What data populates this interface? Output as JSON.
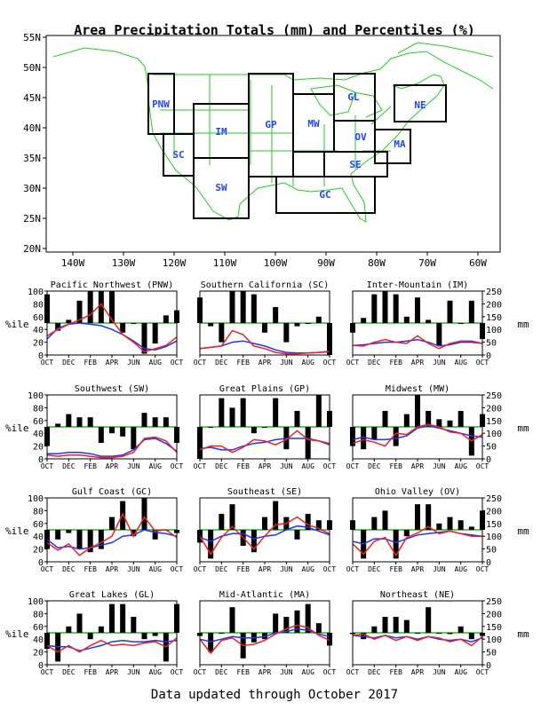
{
  "title": "Area Precipitation Totals (mm) and Percentiles (%)",
  "footer": "Data updated through October 2017",
  "map": {
    "lat_labels": [
      "55N",
      "50N",
      "45N",
      "40N",
      "35N",
      "30N",
      "25N",
      "20N"
    ],
    "lon_labels": [
      "140W",
      "130W",
      "120W",
      "110W",
      "100W",
      "90W",
      "80W",
      "70W",
      "60W"
    ],
    "regions": [
      "PNW",
      "SC",
      "IM",
      "SW",
      "GP",
      "MW",
      "GL",
      "OV",
      "SE",
      "GC",
      "MA",
      "NE"
    ]
  },
  "axes": {
    "pct_label": "%ile",
    "mm_label": "mm",
    "pct_ticks": [
      "0",
      "20",
      "40",
      "60",
      "80",
      "100"
    ],
    "mm_ticks": [
      "0",
      "50",
      "100",
      "150",
      "200",
      "250"
    ],
    "month_ticks": [
      "OCT",
      "DEC",
      "FEB",
      "APR",
      "JUN",
      "AUG",
      "OCT"
    ]
  },
  "colors": {
    "bars": "#000000",
    "median_line": "#22bb22",
    "red_line": "#ee2222",
    "blue_line": "#2233ee",
    "map_lines": "#22cc22",
    "region_labels": "#2244ff"
  },
  "chart_data": [
    {
      "type": "bar",
      "title": "Pacific Northwest (PNW)",
      "bars_pct": [
        95,
        38,
        55,
        85,
        100,
        100,
        100,
        35,
        50,
        2,
        18,
        62,
        70
      ],
      "red": [
        30,
        40,
        48,
        55,
        63,
        80,
        55,
        32,
        20,
        5,
        10,
        15,
        28
      ],
      "blue": [
        25,
        42,
        48,
        50,
        48,
        46,
        40,
        32,
        22,
        10,
        8,
        13,
        22
      ]
    },
    {
      "type": "bar",
      "title": "Southern California (SC)",
      "bars_pct": [
        90,
        45,
        20,
        100,
        100,
        95,
        35,
        75,
        20,
        45,
        50,
        60,
        0
      ],
      "red": [
        10,
        12,
        14,
        38,
        32,
        14,
        10,
        4,
        2,
        2,
        3,
        4,
        6
      ],
      "blue": [
        10,
        12,
        14,
        20,
        22,
        18,
        14,
        8,
        4,
        3,
        3,
        4,
        5
      ]
    },
    {
      "type": "bar",
      "title": "Inter-Mountain (IM)",
      "bars_pct": [
        35,
        58,
        95,
        100,
        95,
        60,
        90,
        55,
        15,
        85,
        50,
        85,
        25
      ],
      "red": [
        15,
        14,
        20,
        24,
        20,
        18,
        30,
        18,
        10,
        18,
        22,
        22,
        18
      ],
      "blue": [
        15,
        16,
        18,
        20,
        20,
        22,
        24,
        20,
        14,
        16,
        20,
        20,
        18
      ]
    },
    {
      "type": "bar",
      "title": "Southwest (SW)",
      "bars_pct": [
        20,
        55,
        70,
        65,
        65,
        25,
        40,
        35,
        15,
        72,
        65,
        65,
        25
      ],
      "red": [
        6,
        4,
        6,
        6,
        4,
        2,
        2,
        4,
        10,
        32,
        34,
        28,
        10
      ],
      "blue": [
        8,
        8,
        10,
        10,
        8,
        4,
        4,
        6,
        14,
        30,
        32,
        24,
        12
      ]
    },
    {
      "type": "bar",
      "title": "Great Plains (GP)",
      "bars_pct": [
        0,
        50,
        95,
        80,
        95,
        40,
        50,
        95,
        15,
        75,
        0,
        100,
        75
      ],
      "red": [
        14,
        20,
        20,
        10,
        18,
        30,
        28,
        22,
        30,
        44,
        30,
        28,
        24
      ],
      "blue": [
        16,
        18,
        14,
        14,
        20,
        24,
        26,
        30,
        32,
        32,
        32,
        28,
        22
      ]
    },
    {
      "type": "bar",
      "title": "Midwest (MW)",
      "bars_pct": [
        20,
        15,
        30,
        75,
        20,
        70,
        100,
        75,
        62,
        60,
        75,
        5,
        70
      ],
      "red": [
        24,
        30,
        26,
        20,
        40,
        38,
        50,
        54,
        50,
        42,
        40,
        28,
        38
      ],
      "blue": [
        30,
        34,
        30,
        30,
        32,
        36,
        48,
        52,
        48,
        44,
        40,
        36,
        34
      ]
    },
    {
      "type": "bar",
      "title": "Gulf Coast (GC)",
      "bars_pct": [
        20,
        35,
        45,
        20,
        15,
        20,
        70,
        95,
        40,
        100,
        35,
        50,
        45
      ],
      "red": [
        30,
        18,
        28,
        10,
        22,
        30,
        40,
        75,
        40,
        70,
        48,
        50,
        38
      ],
      "blue": [
        35,
        22,
        24,
        20,
        22,
        26,
        30,
        40,
        42,
        50,
        46,
        44,
        40
      ]
    },
    {
      "type": "bar",
      "title": "Southeast (SE)",
      "bars_pct": [
        30,
        5,
        75,
        90,
        25,
        15,
        70,
        95,
        70,
        35,
        75,
        65,
        65
      ],
      "red": [
        40,
        12,
        38,
        55,
        38,
        20,
        40,
        58,
        60,
        70,
        58,
        52,
        44
      ],
      "blue": [
        38,
        32,
        40,
        44,
        44,
        36,
        40,
        42,
        50,
        56,
        54,
        48,
        42
      ]
    },
    {
      "type": "bar",
      "title": "Ohio Valley (OV)",
      "bars_pct": [
        65,
        5,
        70,
        80,
        5,
        40,
        90,
        90,
        60,
        70,
        65,
        55,
        80
      ],
      "red": [
        28,
        12,
        32,
        38,
        10,
        38,
        45,
        55,
        44,
        48,
        44,
        40,
        40
      ],
      "blue": [
        32,
        28,
        36,
        36,
        30,
        36,
        42,
        44,
        46,
        48,
        44,
        42,
        40
      ]
    },
    {
      "type": "bar",
      "title": "Great Lakes (GL)",
      "bars_pct": [
        25,
        5,
        60,
        80,
        40,
        60,
        95,
        95,
        75,
        40,
        45,
        5,
        95
      ],
      "red": [
        30,
        20,
        30,
        20,
        30,
        38,
        30,
        32,
        30,
        34,
        36,
        28,
        42
      ],
      "blue": [
        30,
        28,
        28,
        22,
        26,
        30,
        36,
        38,
        36,
        36,
        38,
        36,
        38
      ]
    },
    {
      "type": "bar",
      "title": "Mid-Atlantic (MA)",
      "bars_pct": [
        45,
        20,
        50,
        90,
        10,
        35,
        40,
        80,
        75,
        85,
        95,
        65,
        30
      ],
      "red": [
        40,
        18,
        38,
        42,
        30,
        32,
        38,
        48,
        56,
        62,
        58,
        46,
        38
      ],
      "blue": [
        40,
        36,
        40,
        44,
        42,
        42,
        44,
        50,
        52,
        56,
        54,
        48,
        44
      ]
    },
    {
      "type": "bar",
      "title": "Northeast (NE)",
      "bars_pct": [
        48,
        40,
        60,
        75,
        75,
        70,
        50,
        90,
        50,
        48,
        60,
        40,
        45
      ],
      "red": [
        46,
        48,
        40,
        46,
        38,
        44,
        38,
        44,
        42,
        36,
        40,
        30,
        44
      ],
      "blue": [
        46,
        44,
        42,
        46,
        42,
        44,
        40,
        44,
        40,
        38,
        40,
        36,
        42
      ]
    }
  ]
}
